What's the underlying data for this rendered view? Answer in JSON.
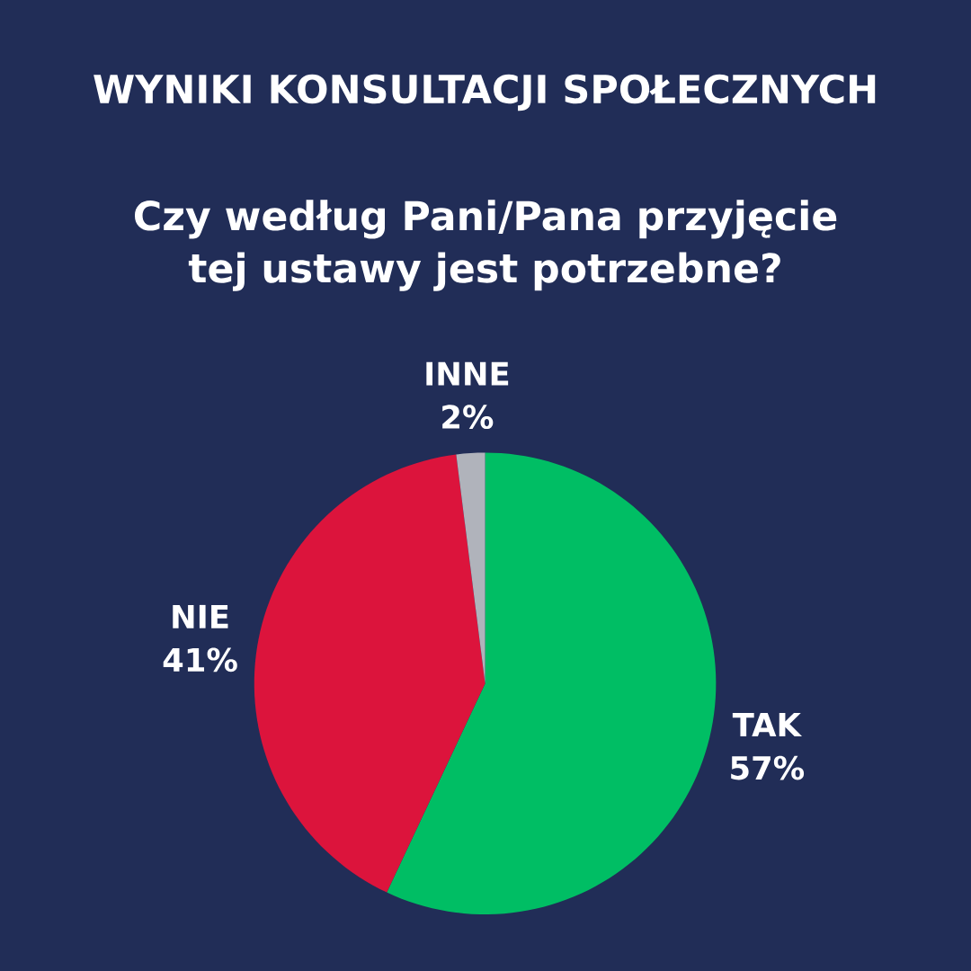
{
  "chart_data": {
    "type": "pie",
    "title": "WYNIKI KONSULTACJI SPOŁECZNYCH",
    "subtitle": "Czy według Pani/Pana przyjęcie tej ustawy jest potrzebne?",
    "categories": [
      "TAK",
      "NIE",
      "INNE"
    ],
    "values": [
      57,
      41,
      2
    ],
    "value_labels": [
      "57%",
      "41%",
      "2%"
    ],
    "colors": [
      "#00be64",
      "#dc143c",
      "#b0b3bb"
    ]
  }
}
